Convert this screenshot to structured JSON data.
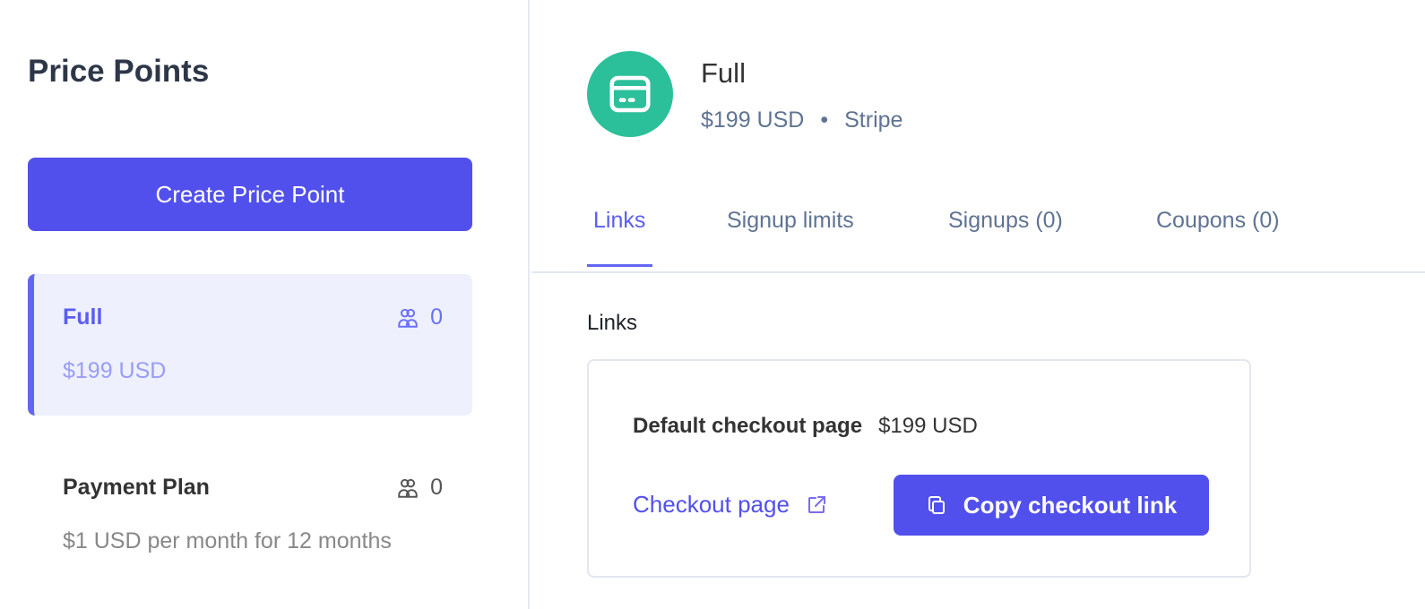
{
  "sidebar": {
    "title": "Price Points",
    "create_label": "Create Price Point",
    "items": [
      {
        "name": "Full",
        "count": "0",
        "price": "$199 USD",
        "active": true
      },
      {
        "name": "Payment Plan",
        "count": "0",
        "price": "$1 USD per month for 12 months",
        "active": false
      }
    ]
  },
  "header": {
    "icon": "credit-card-icon",
    "icon_color": "#2cc09a",
    "name": "Full",
    "price": "$199 USD",
    "separator": "•",
    "processor": "Stripe"
  },
  "tabs": [
    {
      "label": "Links",
      "active": true
    },
    {
      "label": "Signup limits"
    },
    {
      "label": "Signups (0)"
    },
    {
      "label": "Coupons (0)"
    }
  ],
  "links": {
    "section_title": "Links",
    "default_label": "Default checkout page",
    "default_price": "$199 USD",
    "checkout_link_label": "Checkout page",
    "copy_label": "Copy checkout link"
  },
  "colors": {
    "accent": "#5250ec",
    "brand_green": "#2cc09a"
  }
}
